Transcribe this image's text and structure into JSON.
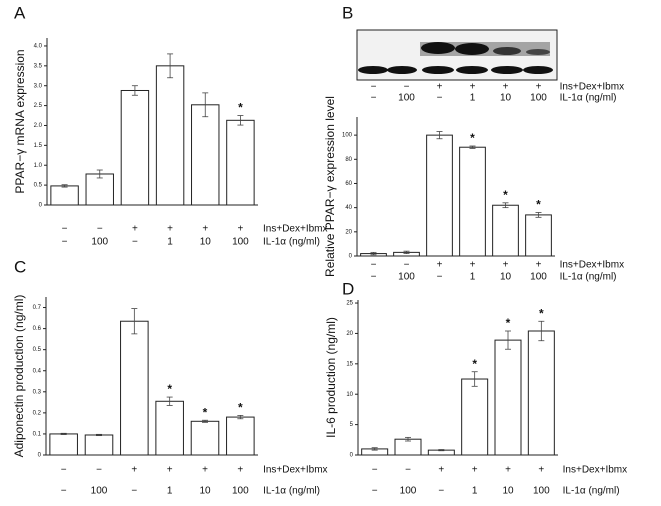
{
  "chart_data": [
    {
      "type": "bar",
      "panel": "A",
      "y_label": "PPAR−γ mRNA expression",
      "values": [
        0.48,
        0.78,
        2.88,
        3.5,
        2.52,
        2.13
      ],
      "errors": [
        0.03,
        0.1,
        0.12,
        0.3,
        0.3,
        0.12
      ],
      "significant": [
        false,
        false,
        false,
        false,
        false,
        true
      ],
      "significance_mark": "*",
      "treatment_rows": [
        {
          "label": "Ins+Dex+Ibmx",
          "values": [
            "−",
            "−",
            "+",
            "+",
            "+",
            "+"
          ]
        },
        {
          "label": "IL-1α (ng/ml)",
          "values": [
            "−",
            "100",
            "−",
            "1",
            "10",
            "100"
          ]
        }
      ],
      "ylim": [
        0,
        4.2
      ],
      "yticks": [
        0,
        0.5,
        {
          "value": 1,
          "label": "1.0"
        },
        1.5,
        {
          "value": 2,
          "label": "2.0"
        },
        2.5,
        {
          "value": 3,
          "label": "3.0"
        },
        3.5,
        {
          "value": 4,
          "label": "4.0"
        }
      ],
      "color": "#ffffff"
    },
    {
      "type": "bar",
      "panel": "B",
      "y_label": "Relative PPAR−γ expression level",
      "values": [
        2,
        3,
        100,
        90,
        42,
        34
      ],
      "errors": [
        1,
        1,
        3,
        1,
        2,
        2
      ],
      "significant": [
        false,
        false,
        false,
        true,
        true,
        true
      ],
      "significance_mark": "*",
      "blot_treatment_rows": [
        {
          "label": "Ins+Dex+Ibmx",
          "values": [
            "−",
            "−",
            "+",
            "+",
            "+",
            "+"
          ]
        },
        {
          "label": "IL-1α (ng/ml)",
          "values": [
            "−",
            "100",
            "−",
            "1",
            "10",
            "100"
          ]
        }
      ],
      "treatment_rows": [
        {
          "label": "Ins+Dex+Ibmx",
          "values": [
            "−",
            "−",
            "+",
            "+",
            "+",
            "+"
          ]
        },
        {
          "label": "IL-1α (ng/ml)",
          "values": [
            "−",
            "100",
            "−",
            "1",
            "10",
            "100"
          ]
        }
      ],
      "ylim": [
        0,
        115
      ],
      "yticks": [
        0,
        20,
        40,
        60,
        80,
        100
      ],
      "color": "#ffffff"
    },
    {
      "type": "bar",
      "panel": "C",
      "y_label": "Adiponectin production (ng/ml)",
      "values": [
        0.1,
        0.095,
        0.635,
        0.255,
        0.16,
        0.18
      ],
      "errors": [
        0.003,
        0.003,
        0.06,
        0.02,
        0.005,
        0.008
      ],
      "significant": [
        false,
        false,
        false,
        true,
        true,
        true
      ],
      "significance_mark": "*",
      "treatment_rows": [
        {
          "label": "Ins+Dex+Ibmx",
          "values": [
            "−",
            "−",
            "+",
            "+",
            "+",
            "+"
          ]
        },
        {
          "label": "IL-1α (ng/ml)",
          "values": [
            "−",
            "100",
            "−",
            "1",
            "10",
            "100"
          ]
        }
      ],
      "ylim": [
        0,
        0.75
      ],
      "yticks": [
        0,
        0.1,
        0.2,
        0.3,
        0.4,
        0.5,
        0.6,
        0.7
      ],
      "color": "#ffffff"
    },
    {
      "type": "bar",
      "panel": "D",
      "y_label": "IL-6 production (ng/ml)",
      "values": [
        1.0,
        2.6,
        0.8,
        12.5,
        18.9,
        20.4
      ],
      "errors": [
        0.2,
        0.3,
        0.1,
        1.2,
        1.5,
        1.6
      ],
      "significant": [
        false,
        false,
        false,
        true,
        true,
        true
      ],
      "significance_mark": "*",
      "treatment_rows": [
        {
          "label": "Ins+Dex+Ibmx",
          "values": [
            "−",
            "−",
            "+",
            "+",
            "+",
            "+"
          ]
        },
        {
          "label": "IL-1α (ng/ml)",
          "values": [
            "−",
            "100",
            "−",
            "1",
            "10",
            "100"
          ]
        }
      ],
      "ylim": [
        0,
        25.5
      ],
      "yticks": [
        0,
        5,
        10,
        15,
        20,
        25
      ],
      "color": "#ffffff"
    }
  ]
}
